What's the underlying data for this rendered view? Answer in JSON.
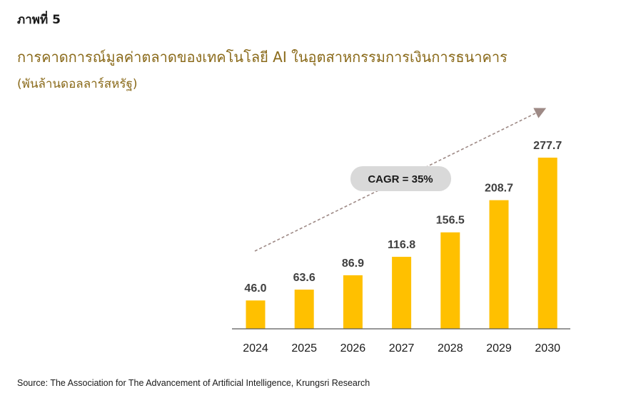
{
  "figure_label": "ภาพที่ 5",
  "title": "การคาดการณ์มูลค่าตลาดของเทคโนโลยี AI ในอุตสาหกรรมการเงินการธนาคาร",
  "subtitle": "(พันล้านดอลลาร์สหรัฐ)",
  "source": "Source: The Association for The Advancement of Artificial Intelligence, Krungsri Research",
  "chart_data": {
    "type": "bar",
    "categories": [
      "2024",
      "2025",
      "2026",
      "2027",
      "2028",
      "2029",
      "2030"
    ],
    "values": [
      46.0,
      63.6,
      86.9,
      116.8,
      156.5,
      208.7,
      277.7
    ],
    "value_labels": [
      "46.0",
      "63.6",
      "86.9",
      "116.8",
      "156.5",
      "208.7",
      "277.7"
    ],
    "annotation": "CAGR = 35%",
    "bar_color": "#FFC000",
    "ylim": [
      0,
      277.7
    ],
    "grid": false,
    "legend": "none"
  }
}
